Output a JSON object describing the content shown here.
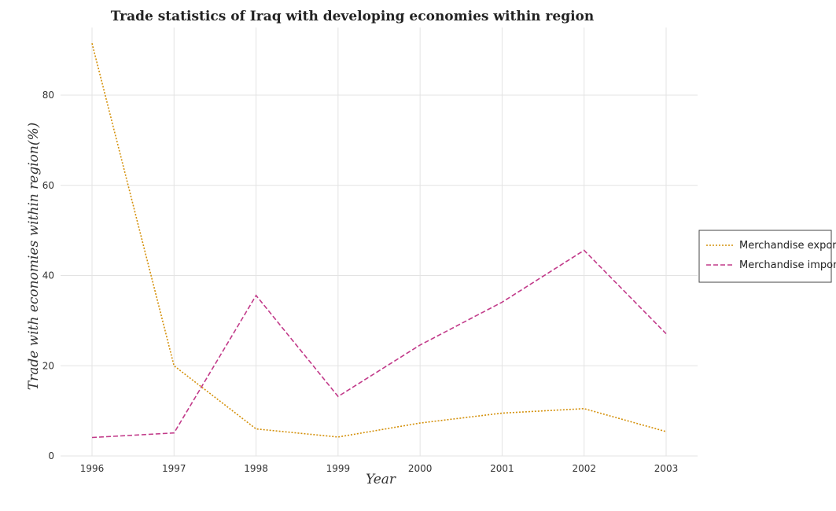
{
  "chart_data": {
    "type": "line",
    "title": "Trade statistics of Iraq with developing economies within region",
    "xlabel": "Year",
    "ylabel": "Trade with economies within region(%)",
    "categories": [
      "1996",
      "1997",
      "1998",
      "1999",
      "2000",
      "2001",
      "2002",
      "2003"
    ],
    "yticks": [
      "0",
      "20",
      "40",
      "60",
      "80"
    ],
    "ylim": [
      0,
      95
    ],
    "grid": true,
    "legend_position": "right",
    "series": [
      {
        "name": "Merchandise exports",
        "color": "#d4900a",
        "dash": "dotted",
        "values": [
          91.5,
          20.0,
          6.0,
          4.2,
          7.3,
          9.5,
          10.5,
          5.4
        ]
      },
      {
        "name": "Merchandise imports",
        "color": "#c23b8a",
        "dash": "dashed",
        "values": [
          4.1,
          5.1,
          35.6,
          13.2,
          24.6,
          34.1,
          45.6,
          27.1
        ]
      }
    ]
  }
}
